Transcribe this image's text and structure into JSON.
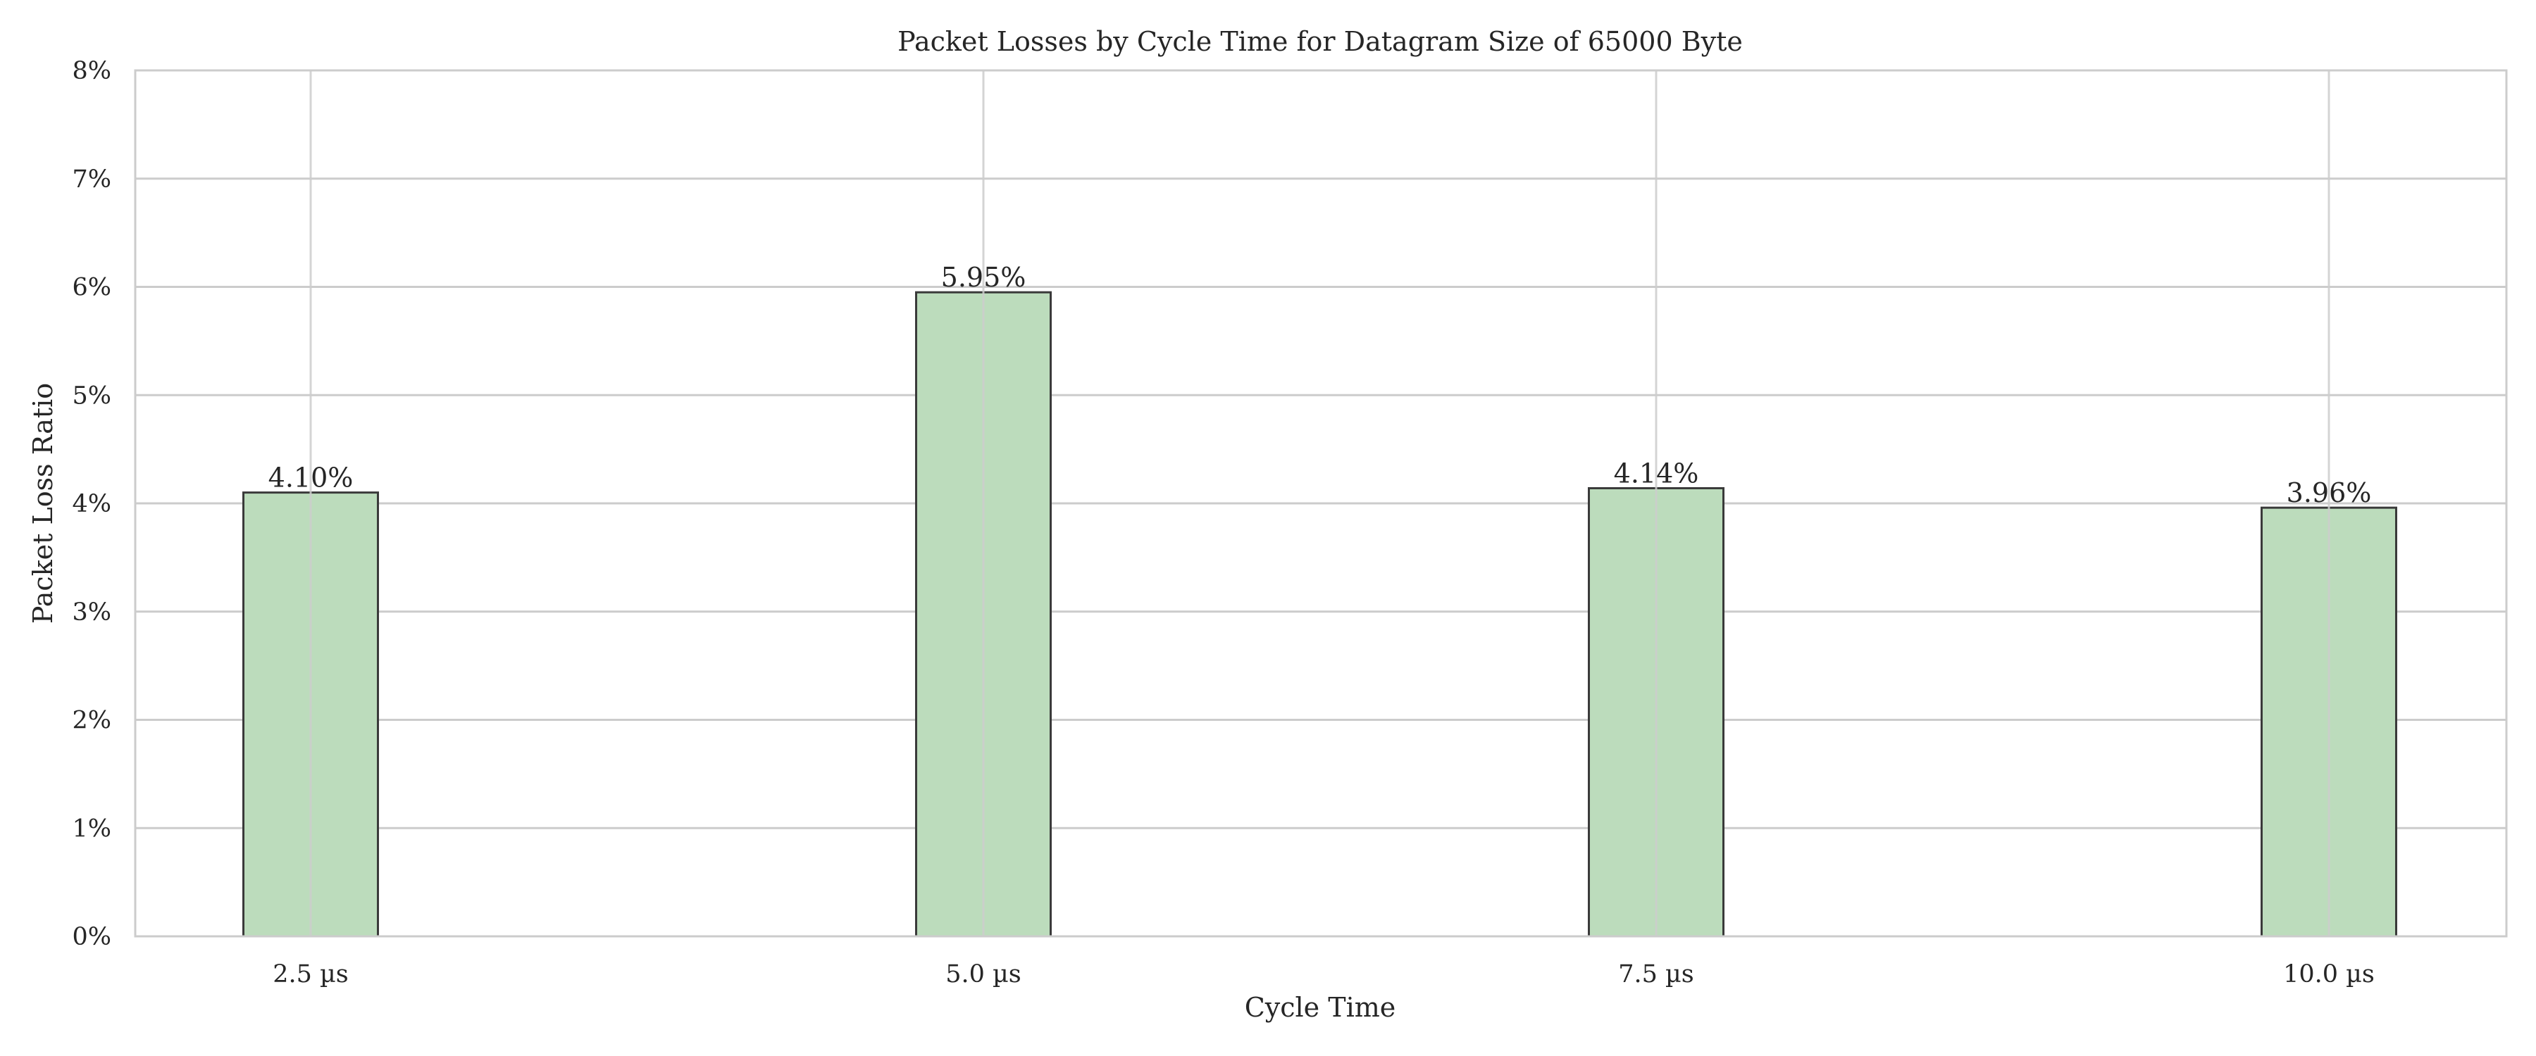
{
  "chart_data": {
    "type": "bar",
    "title": "Packet Losses by Cycle Time for Datagram Size of 65000 Byte",
    "xlabel": "Cycle Time",
    "ylabel": "Packet Loss Ratio",
    "categories": [
      "2.5 µs",
      "5.0 µs",
      "7.5 µs",
      "10.0 µs"
    ],
    "values": [
      4.1,
      5.95,
      4.14,
      3.96
    ],
    "value_labels": [
      "4.10%",
      "5.95%",
      "4.14%",
      "3.96%"
    ],
    "ylim": [
      0,
      8
    ],
    "yticks": [
      0,
      1,
      2,
      3,
      4,
      5,
      6,
      7,
      8
    ],
    "ytick_labels": [
      "0%",
      "1%",
      "2%",
      "3%",
      "4%",
      "5%",
      "6%",
      "7%",
      "8%"
    ],
    "grid": true,
    "colors": {
      "bar_fill": "#bcdcbc",
      "bar_edge": "#3a3a3a",
      "grid": "#cccccc",
      "frame": "#cccccc",
      "text": "#262626"
    }
  }
}
